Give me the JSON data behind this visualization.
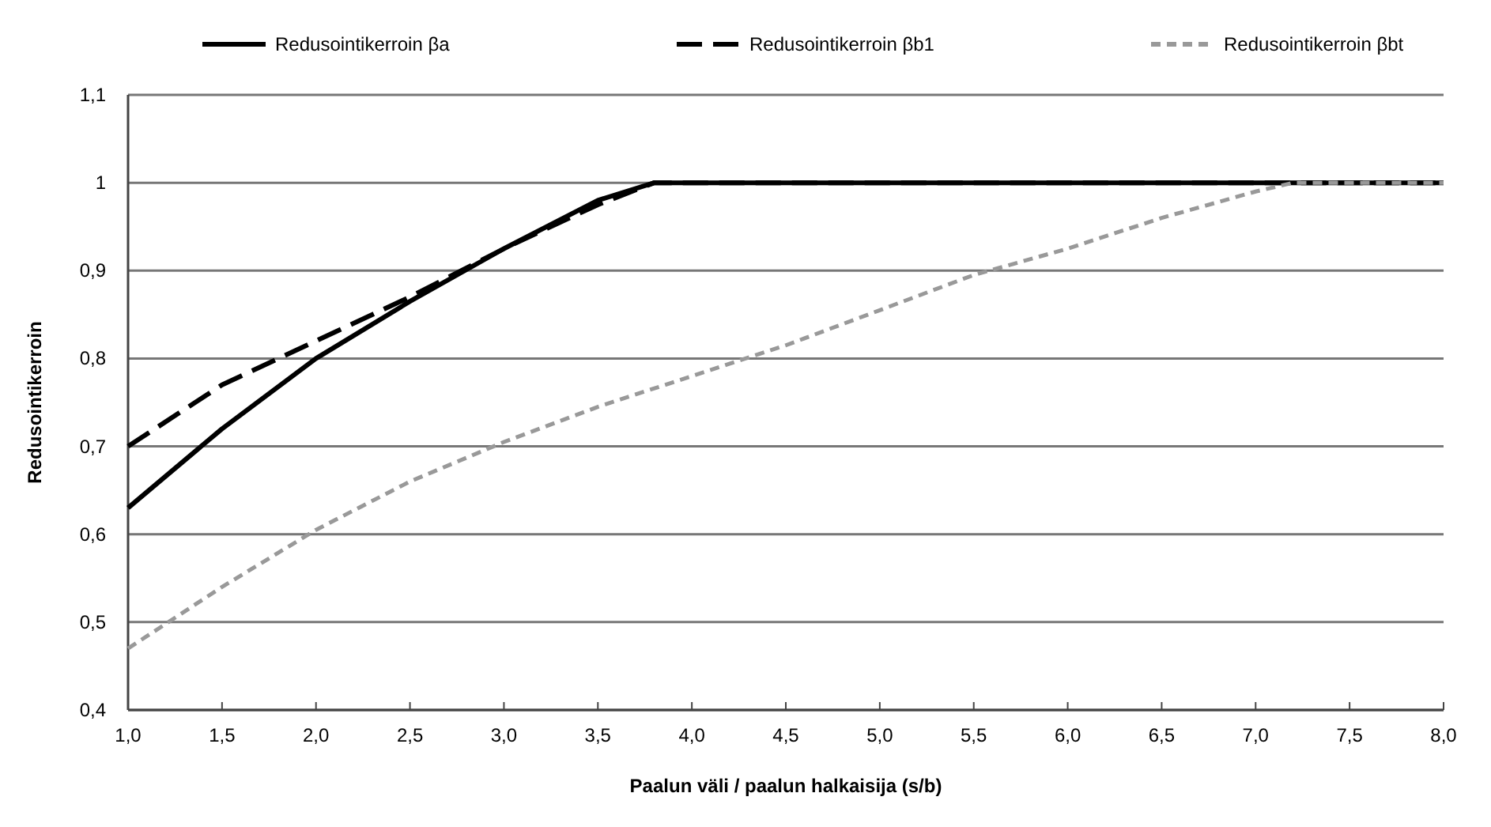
{
  "chart_data": {
    "type": "line",
    "xlabel": "Paalun väli / paalun halkaisija (s/b)",
    "ylabel": "Redusointikerroin",
    "xlim": [
      1,
      8
    ],
    "ylim": [
      0.4,
      1.1
    ],
    "xticks": [
      {
        "value": 1,
        "label": "1,0"
      },
      {
        "value": 1.5,
        "label": "1,5"
      },
      {
        "value": 2,
        "label": "2,0"
      },
      {
        "value": 2.5,
        "label": "2,5"
      },
      {
        "value": 3,
        "label": "3,0"
      },
      {
        "value": 3.5,
        "label": "3,5"
      },
      {
        "value": 4,
        "label": "4,0"
      },
      {
        "value": 4.5,
        "label": "4,5"
      },
      {
        "value": 5,
        "label": "5,0"
      },
      {
        "value": 5.5,
        "label": "5,5"
      },
      {
        "value": 6,
        "label": "6,0"
      },
      {
        "value": 6.5,
        "label": "6,5"
      },
      {
        "value": 7,
        "label": "7,0"
      },
      {
        "value": 7.5,
        "label": "7,5"
      },
      {
        "value": 8,
        "label": "8,0"
      }
    ],
    "yticks": [
      {
        "value": 0.4,
        "label": "0,4"
      },
      {
        "value": 0.5,
        "label": "0,5"
      },
      {
        "value": 0.6,
        "label": "0,6"
      },
      {
        "value": 0.7,
        "label": "0,7"
      },
      {
        "value": 0.8,
        "label": "0,8"
      },
      {
        "value": 0.9,
        "label": "0,9"
      },
      1,
      {
        "value": 1.1,
        "label": "1,1"
      }
    ],
    "grid": "y",
    "legend": "top",
    "series": [
      {
        "name": "Redusointikerroin βa",
        "color": "#000000",
        "line_style": "solid",
        "x": [
          1,
          1.5,
          2,
          2.5,
          3,
          3.5,
          3.8,
          8
        ],
        "values": [
          0.63,
          0.72,
          0.8,
          0.865,
          0.925,
          0.98,
          1,
          1
        ]
      },
      {
        "name": "Redusointikerroin βb1",
        "color": "#000000",
        "line_style": "dashed",
        "x": [
          1,
          1.5,
          2,
          2.5,
          3,
          3.5,
          3.8,
          8
        ],
        "values": [
          0.7,
          0.77,
          0.82,
          0.87,
          0.925,
          0.975,
          1,
          1
        ]
      },
      {
        "name": "Redusointikerroin βbt",
        "color": "#999999",
        "line_style": "dotted",
        "x": [
          1,
          1.5,
          2,
          2.5,
          3,
          3.5,
          4,
          4.5,
          5,
          5.5,
          6,
          6.5,
          7,
          7.2,
          8
        ],
        "values": [
          0.47,
          0.54,
          0.605,
          0.66,
          0.705,
          0.745,
          0.78,
          0.815,
          0.855,
          0.895,
          0.925,
          0.96,
          0.99,
          1,
          1
        ]
      }
    ]
  }
}
